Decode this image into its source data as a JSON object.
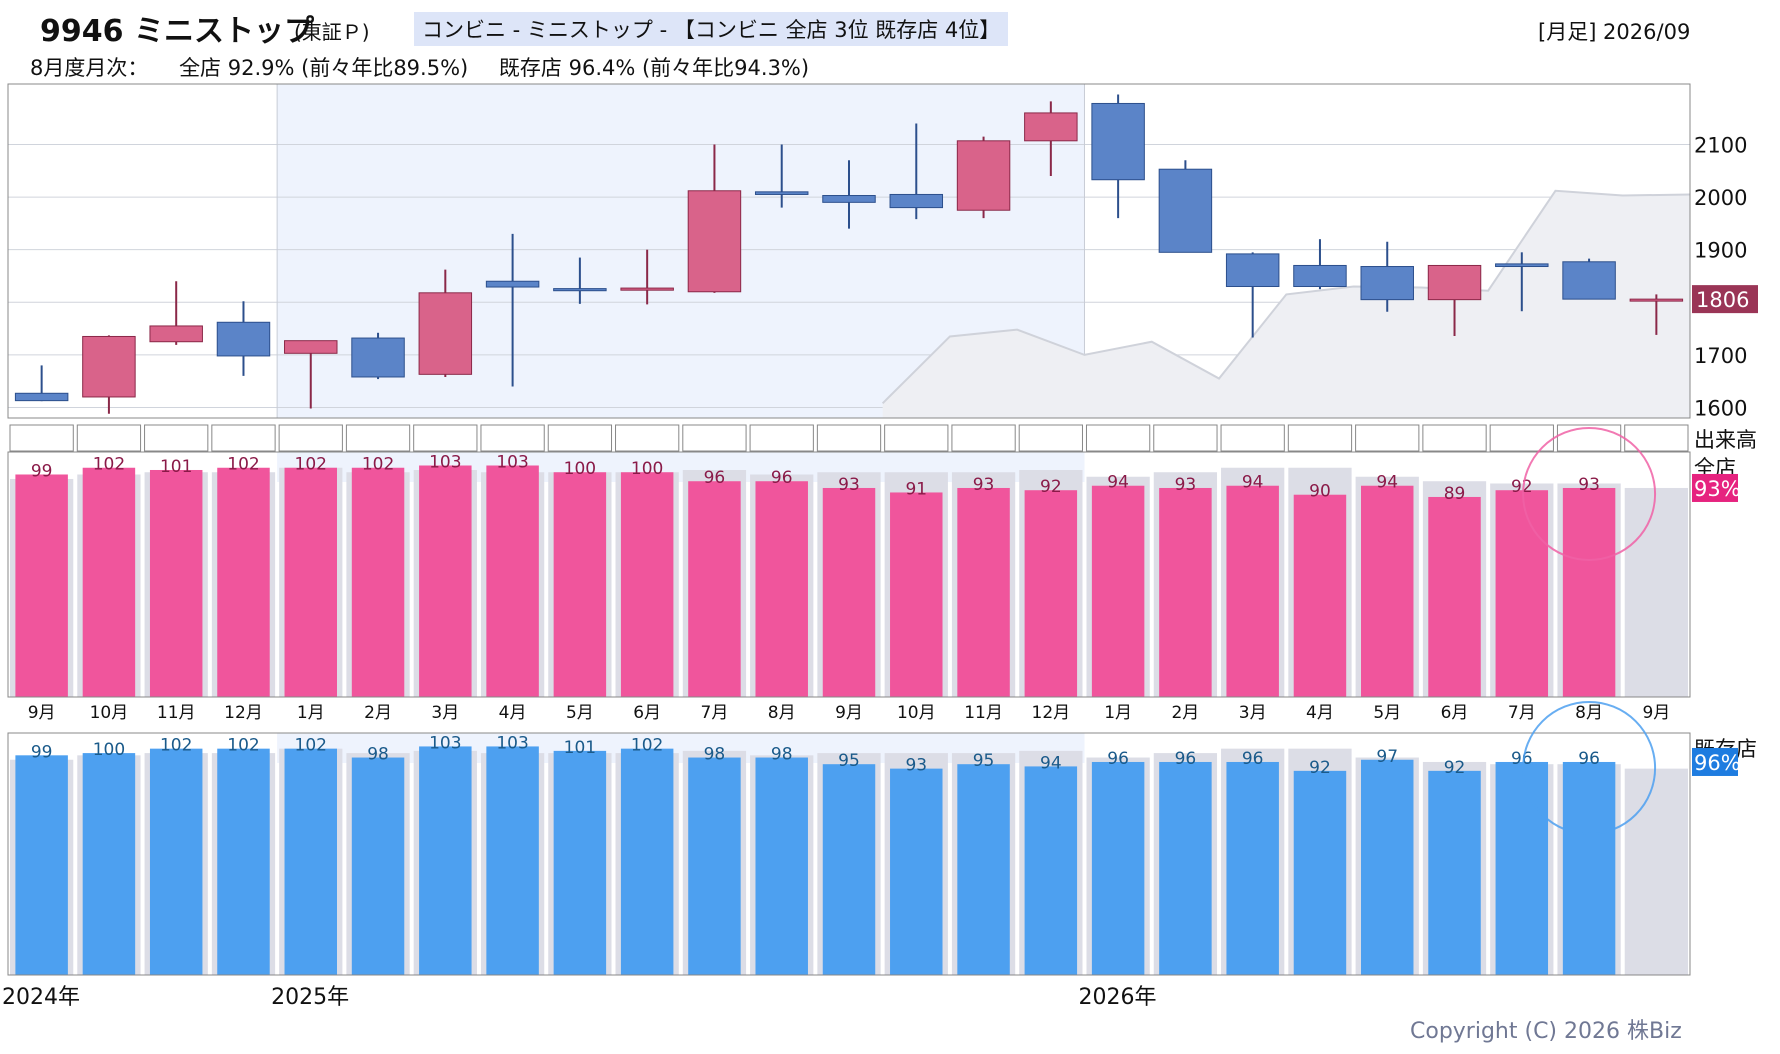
{
  "header": {
    "ticker": "9946 ミニストップ",
    "exchange": "(東証Ｐ)",
    "category": "コンビニ - ミニストップ - 【コンビニ 全店 3位 既存店 4位】",
    "period": "[月足] 2026/09",
    "monthly_label": "8月度月次：",
    "all_stores": "全店 92.9% (前々年比89.5%)",
    "existing_stores": "既存店 96.4% (前々年比94.3%)"
  },
  "labels": {
    "volume": "出来高",
    "all_panel": "全店",
    "existing_panel": "既存店",
    "copyright": "Copyright (C) 2026 株Biz"
  },
  "colors": {
    "up": "#d9638a",
    "down": "#5b84c8",
    "all_bar": "#f0559c",
    "existing_bar": "#4da0f0",
    "highlight": "#eef3fd",
    "grey_bar": "#dcdde6"
  },
  "chart_data": [
    {
      "type": "candlestick",
      "x": [
        "9月",
        "10月",
        "11月",
        "12月",
        "1月",
        "2月",
        "3月",
        "4月",
        "5月",
        "6月",
        "7月",
        "8月",
        "9月",
        "10月",
        "11月",
        "12月",
        "1月",
        "2月",
        "3月",
        "4月",
        "5月",
        "6月",
        "7月",
        "8月",
        "9月"
      ],
      "year_labels": [
        {
          "index": 0,
          "label": "2024年"
        },
        {
          "index": 4,
          "label": "2025年"
        },
        {
          "index": 16,
          "label": "2026年"
        }
      ],
      "ohlc": [
        [
          1627,
          1680,
          1612,
          1613
        ],
        [
          1620,
          1737,
          1588,
          1735
        ],
        [
          1725,
          1840,
          1719,
          1755
        ],
        [
          1762,
          1802,
          1660,
          1698
        ],
        [
          1703,
          1725,
          1598,
          1727
        ],
        [
          1732,
          1742,
          1654,
          1658
        ],
        [
          1663,
          1862,
          1658,
          1818
        ],
        [
          1840,
          1930,
          1640,
          1829
        ],
        [
          1826,
          1885,
          1797,
          1822
        ],
        [
          1823,
          1900,
          1796,
          1827
        ],
        [
          1820,
          2100,
          1818,
          2012
        ],
        [
          2010,
          2100,
          1980,
          2005
        ],
        [
          2003,
          2070,
          1940,
          1990
        ],
        [
          2005,
          2140,
          1958,
          1980
        ],
        [
          1975,
          2115,
          1960,
          2107
        ],
        [
          2107,
          2182,
          2040,
          2160
        ],
        [
          2178,
          2195,
          1960,
          2033
        ],
        [
          2053,
          2070,
          1895,
          1895
        ],
        [
          1892,
          1895,
          1733,
          1830
        ],
        [
          1870,
          1920,
          1825,
          1830
        ],
        [
          1868,
          1915,
          1782,
          1805
        ],
        [
          1805,
          1870,
          1736,
          1870
        ],
        [
          1873,
          1895,
          1783,
          1868
        ],
        [
          1877,
          1883,
          1806,
          1806
        ],
        [
          1805,
          1815,
          1738,
          1806
        ]
      ],
      "last_price": "1806",
      "y_ticks": [
        1600,
        1700,
        1800,
        1900,
        2000,
        2100
      ],
      "ylim": [
        1580,
        2215
      ],
      "bg_line": [
        [
          13,
          1608
        ],
        [
          14,
          1735
        ],
        [
          15,
          1748
        ],
        [
          16,
          1700
        ],
        [
          17,
          1725
        ],
        [
          18,
          1655
        ],
        [
          19,
          1815
        ],
        [
          20,
          1830
        ],
        [
          21,
          1828
        ],
        [
          22,
          1822
        ],
        [
          23,
          2012
        ],
        [
          24,
          2003
        ],
        [
          25,
          2005
        ]
      ],
      "highlight_range": [
        4,
        15
      ]
    },
    {
      "type": "bar",
      "title": "全店",
      "categories": [
        "9月",
        "10月",
        "11月",
        "12月",
        "1月",
        "2月",
        "3月",
        "4月",
        "5月",
        "6月",
        "7月",
        "8月",
        "9月",
        "10月",
        "11月",
        "12月",
        "1月",
        "2月",
        "3月",
        "4月",
        "5月",
        "6月",
        "7月",
        "8月",
        "9月"
      ],
      "values": [
        99,
        102,
        101,
        102,
        102,
        102,
        103,
        103,
        100,
        100,
        96,
        96,
        93,
        91,
        93,
        92,
        94,
        93,
        94,
        90,
        94,
        89,
        92,
        93,
        null
      ],
      "prev_values": [
        97,
        99,
        100,
        100,
        102,
        100,
        101,
        100,
        100,
        100,
        101,
        99,
        100,
        100,
        100,
        101,
        98,
        100,
        102,
        102,
        98,
        96,
        95,
        95,
        93
      ],
      "current": "93%",
      "ylim": [
        0,
        105
      ]
    },
    {
      "type": "bar",
      "title": "既存店",
      "categories": [
        "9月",
        "10月",
        "11月",
        "12月",
        "1月",
        "2月",
        "3月",
        "4月",
        "5月",
        "6月",
        "7月",
        "8月",
        "9月",
        "10月",
        "11月",
        "12月",
        "1月",
        "2月",
        "3月",
        "4月",
        "5月",
        "6月",
        "7月",
        "8月",
        "9月"
      ],
      "values": [
        99,
        100,
        102,
        102,
        102,
        98,
        103,
        103,
        101,
        102,
        98,
        98,
        95,
        93,
        95,
        94,
        96,
        96,
        96,
        92,
        97,
        92,
        96,
        96,
        null
      ],
      "prev_values": [
        97,
        99,
        100,
        100,
        102,
        100,
        101,
        100,
        100,
        100,
        101,
        99,
        100,
        100,
        100,
        101,
        98,
        100,
        102,
        102,
        98,
        96,
        95,
        95,
        93
      ],
      "current": "96%",
      "ylim": [
        0,
        105
      ]
    }
  ]
}
